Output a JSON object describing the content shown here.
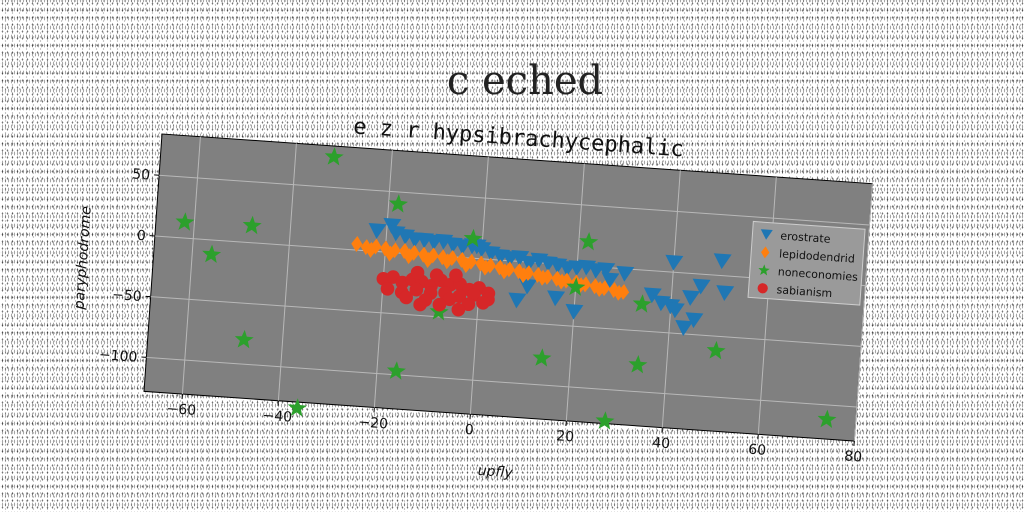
{
  "page": {
    "suptitle": "c  eched"
  },
  "chart_data": {
    "type": "scatter",
    "title": "e z r hypsibrachycephalic",
    "xlabel": "upfly",
    "ylabel": "paryphodrome",
    "xlim": [
      -68,
      80
    ],
    "ylim": [
      -128,
      84
    ],
    "x_ticks": [
      -60,
      -40,
      -20,
      0,
      20,
      40,
      60,
      80
    ],
    "y_ticks": [
      50,
      0,
      -50,
      -100
    ],
    "grid": true,
    "legend_position": "top-right",
    "background": "#808080",
    "series": [
      {
        "name": "erostrate",
        "marker": "triangle-down",
        "color": "#1f77b4",
        "points": [
          [
            -22,
            17
          ],
          [
            -19,
            22
          ],
          [
            -18,
            16
          ],
          [
            -16,
            14
          ],
          [
            -14,
            12
          ],
          [
            -12,
            12
          ],
          [
            -10,
            11
          ],
          [
            -8,
            12
          ],
          [
            -6,
            10
          ],
          [
            -4,
            9
          ],
          [
            -2,
            10
          ],
          [
            0,
            8
          ],
          [
            -1,
            10
          ],
          [
            2,
            5
          ],
          [
            4,
            3
          ],
          [
            6,
            2
          ],
          [
            8,
            3
          ],
          [
            10,
            -1
          ],
          [
            12,
            2
          ],
          [
            14,
            0
          ],
          [
            16,
            -1
          ],
          [
            18,
            -3
          ],
          [
            20,
            -2
          ],
          [
            22,
            -1
          ],
          [
            24,
            -3
          ],
          [
            26,
            -2
          ],
          [
            30,
            -4
          ],
          [
            27,
            -10
          ],
          [
            10,
            -20
          ],
          [
            8,
            -32
          ],
          [
            16,
            -28
          ],
          [
            20,
            -38
          ],
          [
            36,
            -20
          ],
          [
            38,
            -26
          ],
          [
            40,
            -28
          ],
          [
            41,
            -31
          ],
          [
            43,
            -45
          ],
          [
            44,
            -20
          ],
          [
            45,
            -38
          ],
          [
            46,
            -10
          ],
          [
            50,
            12
          ],
          [
            51,
            -14
          ],
          [
            40,
            8
          ]
        ]
      },
      {
        "name": "lepidodendrid",
        "marker": "diamond",
        "color": "#ff7f0e",
        "points": [
          [
            -26,
            5
          ],
          [
            -24,
            3
          ],
          [
            -22,
            4
          ],
          [
            -20,
            3
          ],
          [
            -18,
            2
          ],
          [
            -16,
            2
          ],
          [
            -14,
            1
          ],
          [
            -12,
            0
          ],
          [
            -10,
            0
          ],
          [
            -8,
            -1
          ],
          [
            -6,
            -1
          ],
          [
            -4,
            -2
          ],
          [
            -2,
            -3
          ],
          [
            0,
            -4
          ],
          [
            2,
            -5
          ],
          [
            4,
            -6
          ],
          [
            6,
            -7
          ],
          [
            8,
            -8
          ],
          [
            10,
            -9
          ],
          [
            12,
            -10
          ],
          [
            14,
            -11
          ],
          [
            16,
            -12
          ],
          [
            18,
            -13
          ],
          [
            20,
            -14
          ],
          [
            22,
            -15
          ],
          [
            24,
            -16
          ],
          [
            26,
            -17
          ],
          [
            28,
            -18
          ],
          [
            30,
            -19
          ],
          [
            -23,
            1
          ],
          [
            -19,
            -1
          ],
          [
            -15,
            -2
          ],
          [
            -11,
            -4
          ],
          [
            -7,
            -4
          ],
          [
            -3,
            -6
          ],
          [
            1,
            -7
          ],
          [
            5,
            -9
          ],
          [
            9,
            -11
          ],
          [
            13,
            -12
          ],
          [
            17,
            -14
          ],
          [
            21,
            -16
          ],
          [
            25,
            -18
          ],
          [
            29,
            -20
          ]
        ]
      },
      {
        "name": "noneconomies",
        "marker": "star",
        "color": "#2ca02c",
        "points": [
          [
            -32,
            75
          ],
          [
            -62,
            13
          ],
          [
            -48,
            14
          ],
          [
            -56,
            -12
          ],
          [
            -18,
            40
          ],
          [
            -2,
            16
          ],
          [
            -8,
            -46
          ],
          [
            -48,
            -80
          ],
          [
            -16,
            -97
          ],
          [
            -36,
            -133
          ],
          [
            20,
            -18
          ],
          [
            22,
            20
          ],
          [
            34,
            -28
          ],
          [
            14,
            -78
          ],
          [
            34,
            -78
          ],
          [
            28,
            -126
          ],
          [
            50,
            -62
          ],
          [
            74,
            -112
          ]
        ]
      },
      {
        "name": "sabianism",
        "marker": "circle",
        "color": "#d62728",
        "points": [
          [
            -20,
            -22
          ],
          [
            -18,
            -20
          ],
          [
            -16,
            -24
          ],
          [
            -14,
            -21
          ],
          [
            -12,
            -22
          ],
          [
            -10,
            -25
          ],
          [
            -8,
            -20
          ],
          [
            -6,
            -23
          ],
          [
            -4,
            -22
          ],
          [
            -2,
            -26
          ],
          [
            0,
            -24
          ],
          [
            2,
            -28
          ],
          [
            -19,
            -30
          ],
          [
            -16,
            -32
          ],
          [
            -13,
            -29
          ],
          [
            -10,
            -31
          ],
          [
            -7,
            -30
          ],
          [
            -4,
            -32
          ],
          [
            -1,
            -30
          ],
          [
            2,
            -33
          ],
          [
            -15,
            -36
          ],
          [
            -11,
            -37
          ],
          [
            -6,
            -35
          ],
          [
            -2,
            -38
          ],
          [
            1,
            -36
          ],
          [
            -8,
            -40
          ],
          [
            -12,
            -41
          ],
          [
            -4,
            -43
          ],
          [
            -9,
            -16
          ],
          [
            -5,
            -15
          ],
          [
            -13,
            -15
          ]
        ]
      }
    ]
  }
}
